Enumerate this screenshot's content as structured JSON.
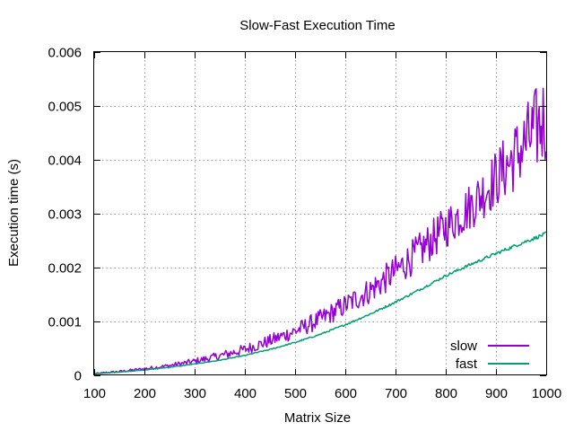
{
  "chart_data": {
    "type": "line",
    "title": "Slow-Fast Execution Time",
    "xlabel": "Matrix Size",
    "ylabel": "Execution time (s)",
    "xlim": [
      100,
      1000
    ],
    "ylim": [
      0,
      0.006
    ],
    "x_ticks": [
      100,
      200,
      300,
      400,
      500,
      600,
      700,
      800,
      900,
      1000
    ],
    "x_tick_labels": [
      "100",
      "200",
      "300",
      "400",
      "500",
      "600",
      "700",
      "800",
      "900",
      "1000"
    ],
    "y_ticks": [
      0,
      0.001,
      0.002,
      0.003,
      0.004,
      0.005,
      0.006
    ],
    "y_tick_labels": [
      "0",
      "0.001",
      "0.002",
      "0.003",
      "0.004",
      "0.005",
      "0.006"
    ],
    "grid": true,
    "legend_position": "bottom-right",
    "x": [
      100,
      150,
      200,
      250,
      300,
      350,
      400,
      450,
      500,
      550,
      600,
      650,
      700,
      750,
      800,
      850,
      900,
      950,
      1000
    ],
    "series": [
      {
        "name": "slow",
        "color": "#9400d3",
        "values": [
          3e-05,
          7e-05,
          0.00012,
          0.00018,
          0.00026,
          0.00036,
          0.00048,
          0.00064,
          0.00082,
          0.00104,
          0.0013,
          0.00158,
          0.00193,
          0.00232,
          0.00275,
          0.00315,
          0.00365,
          0.0042,
          0.0048
        ],
        "fluctuation": [
          1e-05,
          2e-05,
          3e-05,
          4e-05,
          6e-05,
          8e-05,
          0.0001,
          0.00012,
          0.00015,
          0.00018,
          0.00021,
          0.00025,
          0.0003,
          0.00035,
          0.0004,
          0.00045,
          0.00055,
          0.0007,
          0.0009
        ]
      },
      {
        "name": "fast",
        "color": "#009e73",
        "values": [
          3e-05,
          6e-05,
          0.0001,
          0.00015,
          0.00021,
          0.00028,
          0.00037,
          0.00048,
          0.00061,
          0.00076,
          0.00094,
          0.00114,
          0.00136,
          0.0016,
          0.00185,
          0.00206,
          0.00226,
          0.00245,
          0.00263
        ],
        "fluctuation": [
          2e-06,
          3e-06,
          4e-06,
          5e-06,
          6e-06,
          7e-06,
          8e-06,
          1e-05,
          1.2e-05,
          1.4e-05,
          1.6e-05,
          1.8e-05,
          2e-05,
          2.2e-05,
          2.5e-05,
          2.8e-05,
          3e-05,
          3.3e-05,
          3.6e-05
        ]
      }
    ]
  }
}
